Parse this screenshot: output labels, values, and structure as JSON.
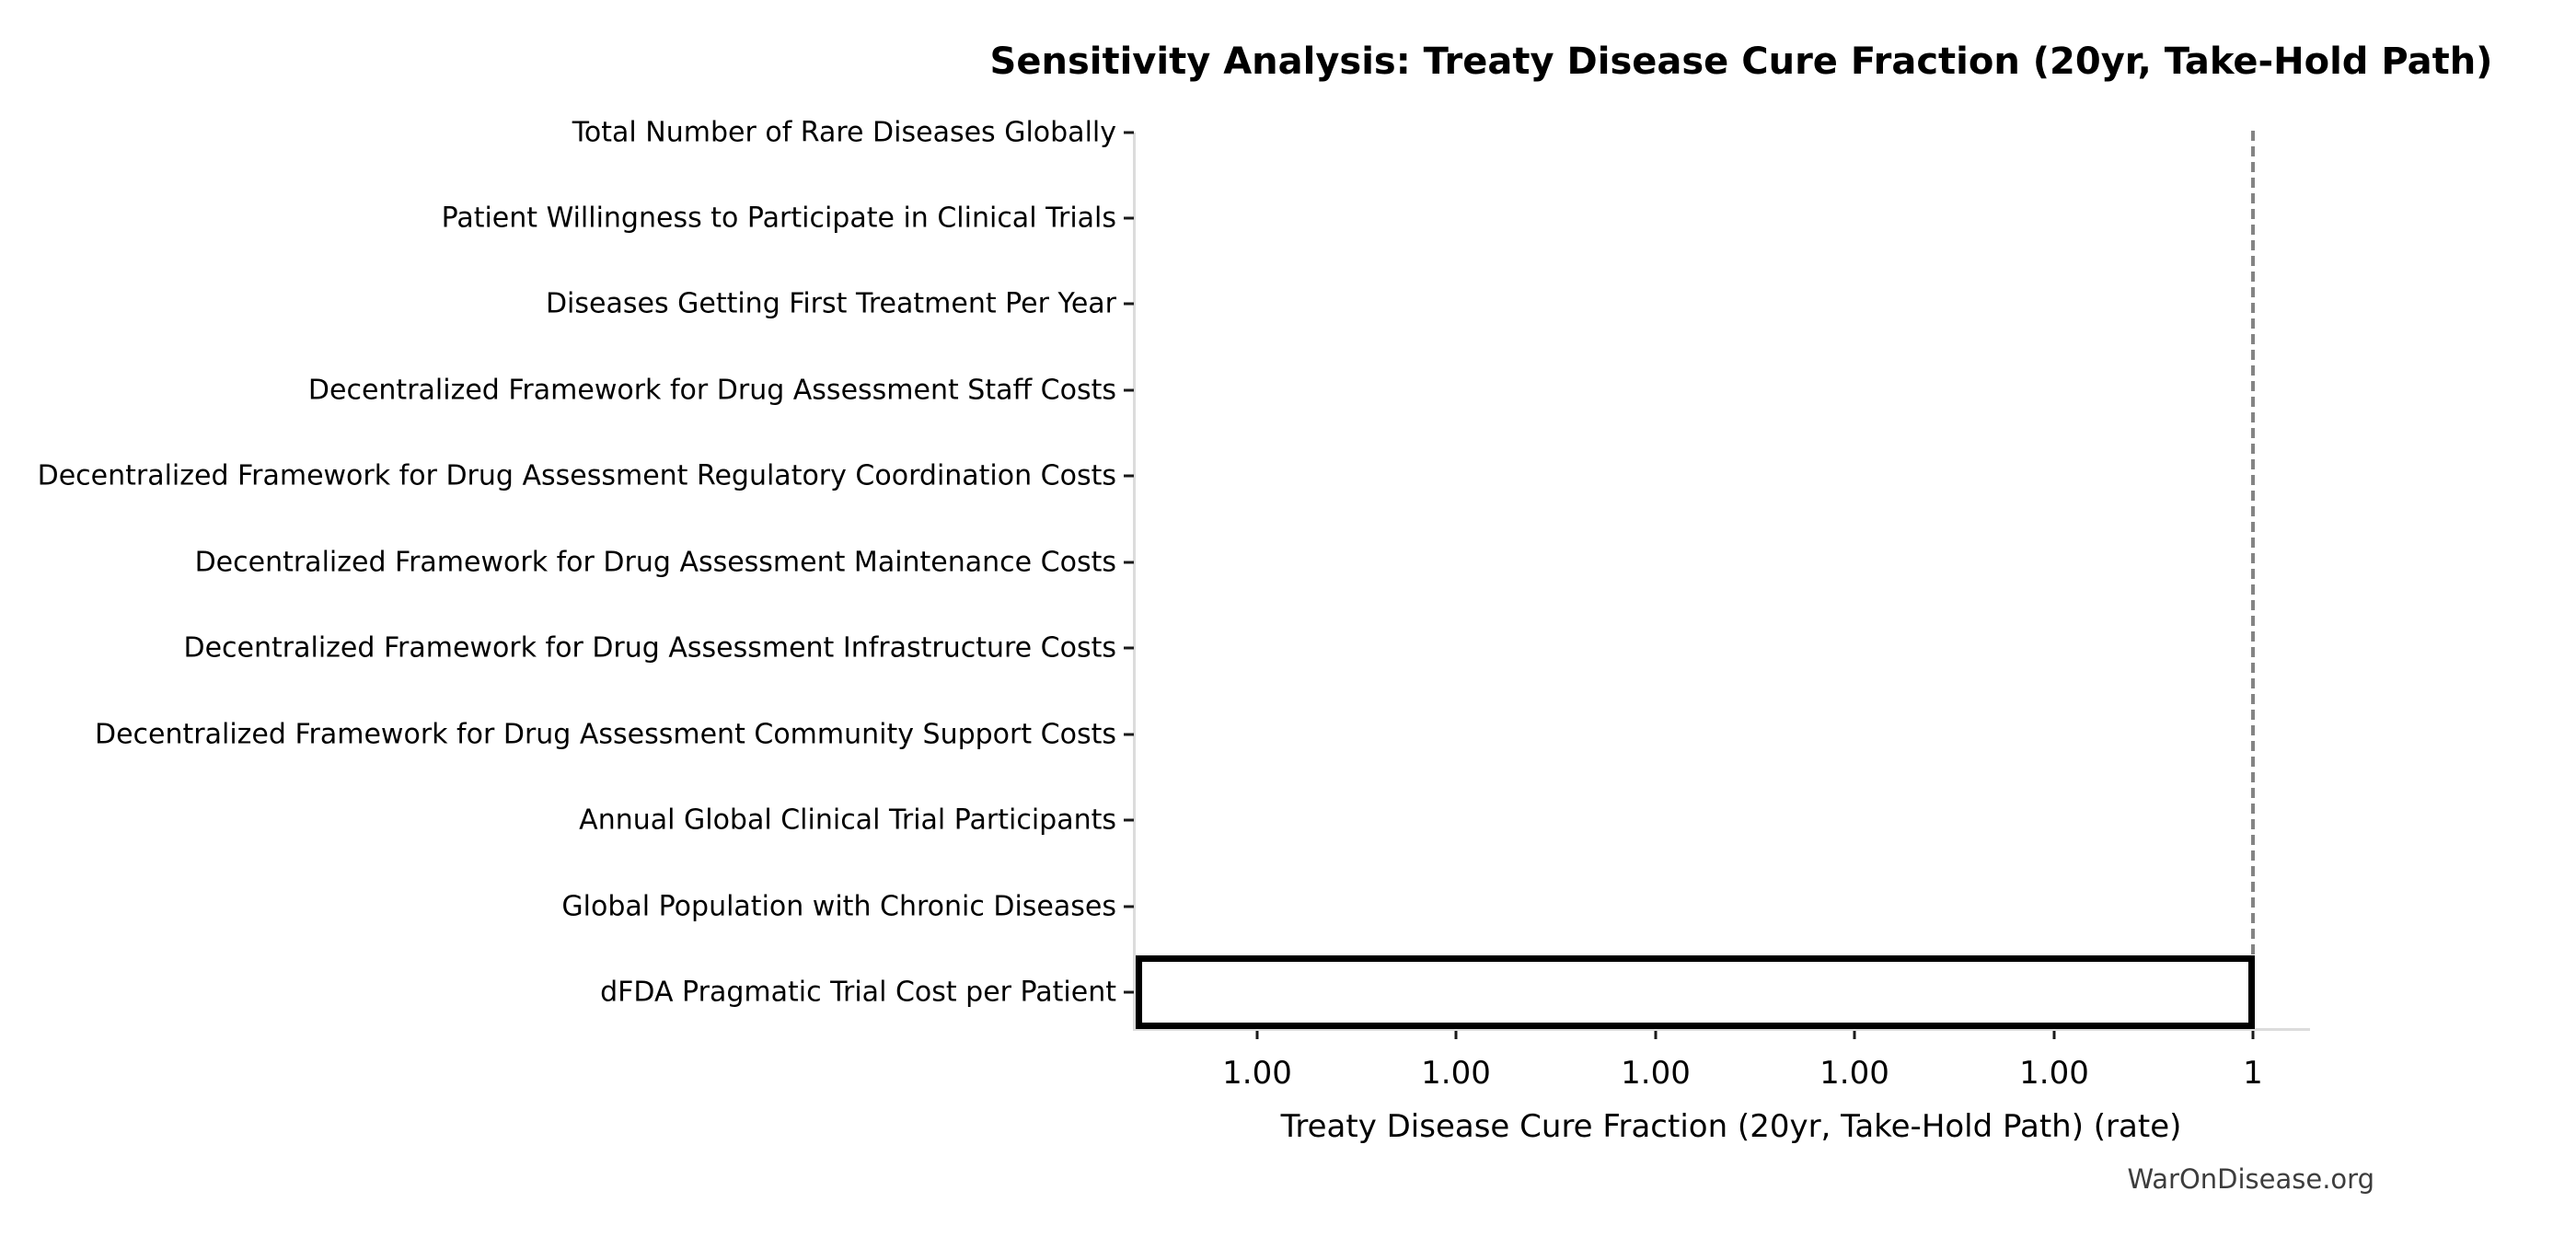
{
  "chart_data": {
    "type": "bar",
    "orientation": "horizontal",
    "variant": "tornado-sensitivity-plot",
    "title": "Sensitivity Analysis: Treaty Disease Cure Fraction (20yr, Take-Hold Path)",
    "xlabel": "Treaty Disease Cure Fraction (20yr, Take-Hold Path) (rate)",
    "ylabel": "",
    "categories": [
      "Total Number of Rare Diseases Globally",
      "Patient Willingness to Participate in Clinical Trials",
      "Diseases Getting First Treatment Per Year",
      "Decentralized Framework for Drug Assessment Staff Costs",
      "Decentralized Framework for Drug Assessment Regulatory Coordination Costs",
      "Decentralized Framework for Drug Assessment Maintenance Costs",
      "Decentralized Framework for Drug Assessment Infrastructure Costs",
      "Decentralized Framework for Drug Assessment Community Support Costs",
      "Annual Global Clinical Trial Participants",
      "Global Population with Chronic Diseases",
      "dFDA Pragmatic Trial Cost per Patient"
    ],
    "values": [
      [
        1.0,
        1.0
      ],
      [
        1.0,
        1.0
      ],
      [
        1.0,
        1.0
      ],
      [
        1.0,
        1.0
      ],
      [
        1.0,
        1.0
      ],
      [
        1.0,
        1.0
      ],
      [
        1.0,
        1.0
      ],
      [
        1.0,
        1.0
      ],
      [
        1.0,
        1.0
      ],
      [
        1.0,
        1.0
      ],
      [
        null,
        1.0
      ]
    ],
    "baseline": 1,
    "x_tick_labels": [
      "1.00",
      "1.00",
      "1.00",
      "1.00",
      "1.00",
      "1"
    ],
    "grid": false,
    "legend": null,
    "notes": "All output values round to 1.00; only the bottom category (dFDA Pragmatic Trial Cost per Patient) shows a visible range bar spanning the full x-axis from the left plot edge to the dashed baseline at x = 1. Other categories have zero-width ranges at the baseline."
  },
  "watermark": "WarOnDisease.org",
  "colors": {
    "background": "#ffffff",
    "text": "#000000",
    "spine": "#dcdcdc",
    "tick_mark": "#1a1a1a",
    "baseline_dashed_line": "#848484",
    "bar_fill": "#ffffff",
    "bar_border": "#000000",
    "watermark_text": "#3d3d3d"
  }
}
